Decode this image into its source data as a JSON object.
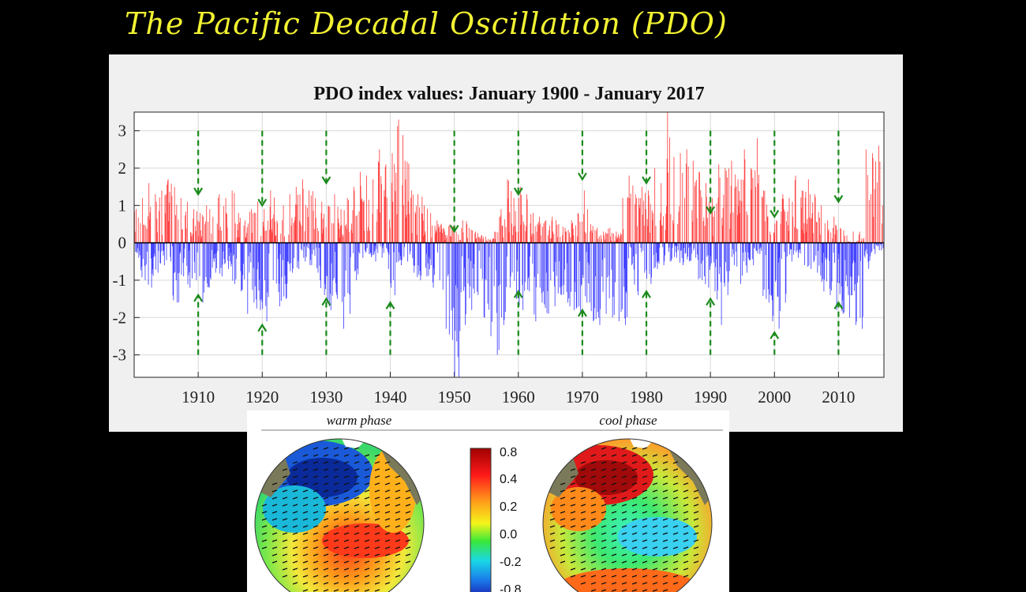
{
  "slide": {
    "title": "The Pacific Decadal Oscillation (PDO)"
  },
  "chart_data": {
    "type": "bar",
    "title": "PDO index values: January 1900 - January 2017",
    "xlabel": "",
    "ylabel": "",
    "xlim": [
      1900,
      2017.1
    ],
    "ylim": [
      -3.6,
      3.5
    ],
    "grid": true,
    "x_ticks": [
      1910,
      1920,
      1930,
      1940,
      1950,
      1960,
      1970,
      1980,
      1990,
      2000,
      2010
    ],
    "y_ticks": [
      3,
      2,
      1,
      0,
      -1,
      -2,
      -3
    ],
    "positive_color": "#ff2b2b",
    "negative_color": "#2b2bff",
    "approx_annual_envelope": {
      "years": [
        1900,
        1901,
        1902,
        1903,
        1904,
        1905,
        1906,
        1907,
        1908,
        1909,
        1910,
        1911,
        1912,
        1913,
        1914,
        1915,
        1916,
        1917,
        1918,
        1919,
        1920,
        1921,
        1922,
        1923,
        1924,
        1925,
        1926,
        1927,
        1928,
        1929,
        1930,
        1931,
        1932,
        1933,
        1934,
        1935,
        1936,
        1937,
        1938,
        1939,
        1940,
        1941,
        1942,
        1943,
        1944,
        1945,
        1946,
        1947,
        1948,
        1949,
        1950,
        1951,
        1952,
        1953,
        1954,
        1955,
        1956,
        1957,
        1958,
        1959,
        1960,
        1961,
        1962,
        1963,
        1964,
        1965,
        1966,
        1967,
        1968,
        1969,
        1970,
        1971,
        1972,
        1973,
        1974,
        1975,
        1976,
        1977,
        1978,
        1979,
        1980,
        1981,
        1982,
        1983,
        1984,
        1985,
        1986,
        1987,
        1988,
        1989,
        1990,
        1991,
        1992,
        1993,
        1994,
        1995,
        1996,
        1997,
        1998,
        1999,
        2000,
        2001,
        2002,
        2003,
        2004,
        2005,
        2006,
        2007,
        2008,
        2009,
        2010,
        2011,
        2012,
        2013,
        2014,
        2015,
        2016
      ],
      "max": [
        0.9,
        1.2,
        1.6,
        1.3,
        1.4,
        1.7,
        1.5,
        1.2,
        1.1,
        0.9,
        0.8,
        1.0,
        0.7,
        1.3,
        1.2,
        1.4,
        0.8,
        0.6,
        0.9,
        1.1,
        0.9,
        1.4,
        0.6,
        1.0,
        1.3,
        1.5,
        1.7,
        1.4,
        1.2,
        1.1,
        1.0,
        1.3,
        0.9,
        1.2,
        1.5,
        1.9,
        1.8,
        1.7,
        2.5,
        2.1,
        2.4,
        3.3,
        2.2,
        1.4,
        1.3,
        1.0,
        0.8,
        0.6,
        0.4,
        0.5,
        0.3,
        0.6,
        0.4,
        0.3,
        0.2,
        0.1,
        0.3,
        0.9,
        1.7,
        1.2,
        1.5,
        1.3,
        0.8,
        0.7,
        0.6,
        0.7,
        0.5,
        0.4,
        0.6,
        0.8,
        1.4,
        0.5,
        0.4,
        0.3,
        0.4,
        0.3,
        1.2,
        1.8,
        1.3,
        1.5,
        1.4,
        2.0,
        1.6,
        3.5,
        2.3,
        2.4,
        2.5,
        2.2,
        1.9,
        1.6,
        1.2,
        2.1,
        2.0,
        2.2,
        1.7,
        2.5,
        2.0,
        2.8,
        1.4,
        0.3,
        0.6,
        1.3,
        1.2,
        1.8,
        1.4,
        1.7,
        1.3,
        1.0,
        0.6,
        0.7,
        0.4,
        0.2,
        0.3,
        0.3,
        2.5,
        2.4,
        2.6
      ],
      "min": [
        -0.4,
        -1.0,
        -1.2,
        -0.8,
        -0.6,
        -0.5,
        -1.6,
        -0.9,
        -1.2,
        -1.0,
        -1.6,
        -1.2,
        -0.8,
        -0.9,
        -0.7,
        -1.1,
        -1.3,
        -1.9,
        -1.6,
        -1.8,
        -2.1,
        -1.0,
        -1.7,
        -1.5,
        -0.8,
        -0.7,
        -0.5,
        -0.6,
        -0.8,
        -1.4,
        -1.8,
        -1.5,
        -2.3,
        -1.9,
        -1.0,
        -0.4,
        -0.3,
        -0.5,
        -0.4,
        -0.7,
        -1.4,
        -0.6,
        -0.5,
        -0.8,
        -1.0,
        -0.9,
        -1.2,
        -1.0,
        -2.3,
        -2.6,
        -3.6,
        -2.2,
        -1.8,
        -1.4,
        -2.0,
        -2.5,
        -3.0,
        -2.2,
        -1.2,
        -1.5,
        -1.8,
        -1.3,
        -2.1,
        -1.6,
        -1.9,
        -1.7,
        -1.4,
        -1.6,
        -1.8,
        -1.9,
        -1.6,
        -2.1,
        -2.2,
        -1.9,
        -2.0,
        -2.1,
        -2.2,
        -0.6,
        -1.4,
        -0.8,
        -1.1,
        -0.7,
        -0.6,
        -0.5,
        -0.4,
        -0.6,
        -0.5,
        -0.4,
        -1.0,
        -1.2,
        -1.3,
        -2.2,
        -1.4,
        -0.6,
        -1.1,
        -0.8,
        -0.6,
        -0.3,
        -1.5,
        -2.1,
        -2.3,
        -1.6,
        -0.5,
        -0.4,
        -0.6,
        -0.7,
        -0.8,
        -1.3,
        -1.4,
        -1.8,
        -1.9,
        -2.0,
        -2.2,
        -2.3,
        -0.7,
        -0.3,
        -0.2
      ]
    },
    "markers": [
      {
        "decade": 1910,
        "upper_arrow_y": [
          3.0,
          1.3
        ],
        "lower_arrow_y": [
          -3.0,
          -1.4
        ]
      },
      {
        "decade": 1920,
        "upper_arrow_y": [
          3.0,
          1.0
        ],
        "lower_arrow_y": [
          -3.0,
          -2.2
        ]
      },
      {
        "decade": 1930,
        "upper_arrow_y": [
          3.0,
          1.6
        ],
        "lower_arrow_y": [
          -3.0,
          -1.5
        ]
      },
      {
        "decade": 1940,
        "lower_arrow_y": [
          -3.0,
          -1.6
        ]
      },
      {
        "decade": 1950,
        "upper_arrow_y": [
          3.0,
          0.3
        ]
      },
      {
        "decade": 1960,
        "upper_arrow_y": [
          3.0,
          1.3
        ],
        "lower_arrow_y": [
          -3.0,
          -1.3
        ]
      },
      {
        "decade": 1970,
        "upper_arrow_y": [
          3.0,
          1.7
        ],
        "lower_arrow_y": [
          -3.0,
          -1.8
        ]
      },
      {
        "decade": 1980,
        "upper_arrow_y": [
          3.0,
          1.6
        ],
        "lower_arrow_y": [
          -3.0,
          -1.3
        ]
      },
      {
        "decade": 1990,
        "upper_arrow_y": [
          3.0,
          0.8
        ],
        "lower_arrow_y": [
          -3.0,
          -1.5
        ]
      },
      {
        "decade": 2000,
        "upper_arrow_y": [
          3.0,
          0.7
        ],
        "lower_arrow_y": [
          -3.0,
          -2.4
        ]
      },
      {
        "decade": 2010,
        "upper_arrow_y": [
          3.0,
          1.1
        ],
        "lower_arrow_y": [
          -3.0,
          -1.6
        ]
      }
    ],
    "marker_color": "#1a8a1a"
  },
  "maps": {
    "warm_label": "warm phase",
    "cool_label": "cool phase",
    "colorbar_ticks": [
      "0.8",
      "0.4",
      "0.2",
      "0.0",
      "-0.2",
      "-0.8"
    ],
    "land_color": "#7a7a5a"
  }
}
